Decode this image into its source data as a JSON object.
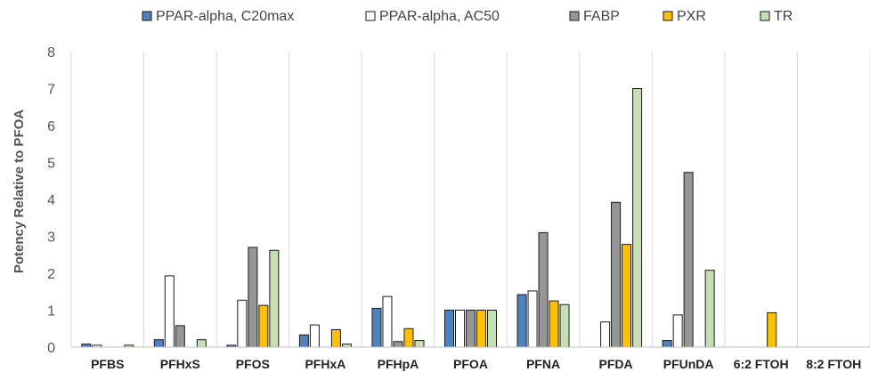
{
  "chart_data": {
    "type": "bar",
    "ylabel": "Potency Relative to PFOA",
    "ylim": [
      0,
      8
    ],
    "yticks": [
      0,
      1,
      2,
      3,
      4,
      5,
      6,
      7,
      8
    ],
    "grid": false,
    "legend_position": "top",
    "categories": [
      "PFBS",
      "PFHxS",
      "PFOS",
      "PFHxA",
      "PFHpA",
      "PFOA",
      "PFNA",
      "PFDA",
      "PFUnDA",
      "6:2 FTOH",
      "8:2 FTOH"
    ],
    "series": [
      {
        "name": "PPAR-alpha, C20max",
        "color": "#4F81BD",
        "values": [
          0.08,
          0.2,
          0.05,
          0.33,
          1.05,
          1.0,
          1.42,
          null,
          0.18,
          null,
          null
        ]
      },
      {
        "name": "PPAR-alpha, AC50",
        "color": "#FFFFFF",
        "values": [
          0.05,
          1.93,
          1.27,
          0.6,
          1.37,
          1.0,
          1.52,
          0.68,
          0.87,
          null,
          null
        ]
      },
      {
        "name": "FABP",
        "color": "#969696",
        "values": [
          null,
          0.58,
          2.7,
          null,
          0.15,
          1.0,
          3.1,
          3.92,
          4.73,
          null,
          null
        ]
      },
      {
        "name": "PXR",
        "color": "#FFC000",
        "values": [
          null,
          null,
          1.13,
          0.47,
          0.5,
          1.0,
          1.25,
          2.78,
          null,
          0.93,
          null
        ]
      },
      {
        "name": "TR",
        "color": "#C4E0B2",
        "values": [
          0.05,
          0.2,
          2.62,
          0.08,
          0.18,
          1.0,
          1.15,
          7.0,
          2.08,
          null,
          null
        ]
      }
    ]
  }
}
